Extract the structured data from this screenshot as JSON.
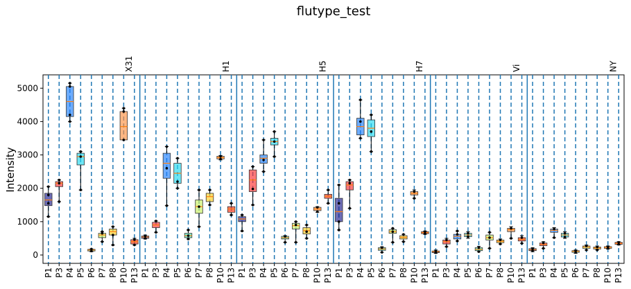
{
  "chart_data": {
    "type": "box",
    "title": "flutype_test",
    "ylabel": "Intensity",
    "xlabel": "",
    "ylim": [
      -250,
      5400
    ],
    "yticks": [
      0,
      1000,
      2000,
      3000,
      4000,
      5000
    ],
    "grid": false,
    "groups": [
      "X31",
      "H1",
      "H5",
      "H7",
      "Vi",
      "NY"
    ],
    "categories": [
      "P1",
      "P3",
      "P4",
      "P5",
      "P6",
      "P7",
      "P8",
      "P10",
      "P13"
    ],
    "group_colors": [
      "#1f1f8f",
      "#ff3030",
      "#1f7fff",
      "#20d8f0",
      "#40e0b0",
      "#c8f060",
      "#ffd020",
      "#ff9040",
      "#ff3010"
    ],
    "boxes": [
      {
        "group": "X31",
        "category": "P1",
        "min": 1150,
        "q1": 1480,
        "median": 1650,
        "q3": 1850,
        "max": 2050,
        "points": [
          1150,
          1550,
          1800,
          2050
        ]
      },
      {
        "group": "X31",
        "category": "P3",
        "min": 1600,
        "q1": 2050,
        "median": 2150,
        "q3": 2200,
        "max": 2250,
        "points": [
          1600,
          2150,
          2250
        ]
      },
      {
        "group": "X31",
        "category": "P4",
        "min": 4000,
        "q1": 4150,
        "median": 4600,
        "q3": 5050,
        "max": 5150,
        "points": [
          4000,
          4200,
          5050,
          5150
        ]
      },
      {
        "group": "X31",
        "category": "P5",
        "min": 1950,
        "q1": 2700,
        "median": 2950,
        "q3": 3050,
        "max": 3100,
        "points": [
          1950,
          2950,
          3100
        ]
      },
      {
        "group": "X31",
        "category": "P6",
        "min": 100,
        "q1": 120,
        "median": 150,
        "q3": 170,
        "max": 180,
        "points": [
          120,
          180
        ]
      },
      {
        "group": "X31",
        "category": "P7",
        "min": 400,
        "q1": 520,
        "median": 600,
        "q3": 650,
        "max": 700,
        "points": [
          400,
          650,
          700
        ]
      },
      {
        "group": "X31",
        "category": "P8",
        "min": 300,
        "q1": 600,
        "median": 700,
        "q3": 780,
        "max": 850,
        "points": [
          300,
          600,
          850
        ]
      },
      {
        "group": "X31",
        "category": "P10",
        "min": 3450,
        "q1": 3450,
        "median": 3850,
        "q3": 4300,
        "max": 4400,
        "points": [
          3450,
          4300,
          4400
        ]
      },
      {
        "group": "X31",
        "category": "P13",
        "min": 300,
        "q1": 330,
        "median": 400,
        "q3": 460,
        "max": 500,
        "points": [
          300,
          460
        ]
      },
      {
        "group": "H1",
        "category": "P1",
        "min": 480,
        "q1": 500,
        "median": 540,
        "q3": 570,
        "max": 600,
        "points": [
          500,
          570
        ]
      },
      {
        "group": "H1",
        "category": "P3",
        "min": 680,
        "q1": 820,
        "median": 900,
        "q3": 980,
        "max": 1020,
        "points": [
          680,
          1020
        ]
      },
      {
        "group": "H1",
        "category": "P4",
        "min": 1480,
        "q1": 2300,
        "median": 2750,
        "q3": 3050,
        "max": 3250,
        "points": [
          1480,
          2600,
          3250
        ]
      },
      {
        "group": "H1",
        "category": "P5",
        "min": 2000,
        "q1": 2150,
        "median": 2450,
        "q3": 2750,
        "max": 2900,
        "points": [
          2000,
          2200,
          2900
        ]
      },
      {
        "group": "H1",
        "category": "P6",
        "min": 480,
        "q1": 520,
        "median": 580,
        "q3": 650,
        "max": 750,
        "points": [
          480,
          580,
          750
        ]
      },
      {
        "group": "H1",
        "category": "P7",
        "min": 850,
        "q1": 1250,
        "median": 1450,
        "q3": 1650,
        "max": 1950,
        "points": [
          850,
          1450,
          1950
        ]
      },
      {
        "group": "H1",
        "category": "P8",
        "min": 1500,
        "q1": 1600,
        "median": 1750,
        "q3": 1850,
        "max": 1950,
        "points": [
          1500,
          1950
        ]
      },
      {
        "group": "H1",
        "category": "P10",
        "min": 2850,
        "q1": 2880,
        "median": 2920,
        "q3": 2960,
        "max": 2980,
        "points": [
          2880,
          2960
        ]
      },
      {
        "group": "H1",
        "category": "P13",
        "min": 1200,
        "q1": 1280,
        "median": 1380,
        "q3": 1450,
        "max": 1550,
        "points": [
          1200,
          1550
        ]
      },
      {
        "group": "H5",
        "category": "P1",
        "min": 720,
        "q1": 1000,
        "median": 1080,
        "q3": 1150,
        "max": 1200,
        "points": [
          720,
          1200
        ]
      },
      {
        "group": "H5",
        "category": "P3",
        "min": 1500,
        "q1": 1900,
        "median": 2250,
        "q3": 2550,
        "max": 2650,
        "points": [
          1500,
          1980,
          2650
        ]
      },
      {
        "group": "H5",
        "category": "P4",
        "min": 2500,
        "q1": 2750,
        "median": 2900,
        "q3": 3000,
        "max": 3450,
        "points": [
          2500,
          2850,
          3450
        ]
      },
      {
        "group": "H5",
        "category": "P5",
        "min": 2950,
        "q1": 3300,
        "median": 3400,
        "q3": 3500,
        "max": 3700,
        "points": [
          2950,
          3400,
          3700
        ]
      },
      {
        "group": "H5",
        "category": "P6",
        "min": 380,
        "q1": 480,
        "median": 520,
        "q3": 560,
        "max": 580,
        "points": [
          380,
          560
        ]
      },
      {
        "group": "H5",
        "category": "P7",
        "min": 380,
        "q1": 780,
        "median": 880,
        "q3": 950,
        "max": 1000,
        "points": [
          380,
          900,
          1000
        ]
      },
      {
        "group": "H5",
        "category": "P8",
        "min": 500,
        "q1": 630,
        "median": 730,
        "q3": 820,
        "max": 900,
        "points": [
          500,
          700,
          900
        ]
      },
      {
        "group": "H5",
        "category": "P10",
        "min": 1280,
        "q1": 1330,
        "median": 1380,
        "q3": 1430,
        "max": 1450,
        "points": [
          1300,
          1430
        ]
      },
      {
        "group": "H5",
        "category": "P13",
        "min": 1550,
        "q1": 1700,
        "median": 1760,
        "q3": 1820,
        "max": 1950,
        "points": [
          1550,
          1950
        ]
      },
      {
        "group": "H7",
        "category": "P1",
        "min": 750,
        "q1": 1000,
        "median": 1300,
        "q3": 1700,
        "max": 2100,
        "points": [
          750,
          1000,
          1550,
          2100
        ]
      },
      {
        "group": "H7",
        "category": "P3",
        "min": 1400,
        "q1": 1950,
        "median": 2100,
        "q3": 2200,
        "max": 2250,
        "points": [
          1400,
          2150,
          2250
        ]
      },
      {
        "group": "H7",
        "category": "P4",
        "min": 3500,
        "q1": 3600,
        "median": 3850,
        "q3": 4100,
        "max": 4650,
        "points": [
          3500,
          4000,
          4650
        ]
      },
      {
        "group": "H7",
        "category": "P5",
        "min": 3100,
        "q1": 3550,
        "median": 3800,
        "q3": 4050,
        "max": 4200,
        "points": [
          3100,
          3700,
          4200
        ]
      },
      {
        "group": "H7",
        "category": "P6",
        "min": 80,
        "q1": 140,
        "median": 180,
        "q3": 220,
        "max": 250,
        "points": [
          80,
          220
        ]
      },
      {
        "group": "H7",
        "category": "P7",
        "min": 380,
        "q1": 650,
        "median": 700,
        "q3": 760,
        "max": 800,
        "points": [
          380,
          700,
          800
        ]
      },
      {
        "group": "H7",
        "category": "P8",
        "min": 400,
        "q1": 480,
        "median": 530,
        "q3": 580,
        "max": 620,
        "points": [
          400,
          620
        ]
      },
      {
        "group": "H7",
        "category": "P10",
        "min": 1700,
        "q1": 1800,
        "median": 1850,
        "q3": 1900,
        "max": 1950,
        "points": [
          1700,
          1900
        ]
      },
      {
        "group": "H7",
        "category": "P13",
        "min": 620,
        "q1": 640,
        "median": 670,
        "q3": 700,
        "max": 720,
        "points": [
          640,
          700
        ]
      },
      {
        "group": "Vi",
        "category": "P1",
        "min": 50,
        "q1": 70,
        "median": 100,
        "q3": 120,
        "max": 150,
        "points": [
          70,
          120
        ]
      },
      {
        "group": "Vi",
        "category": "P3",
        "min": 250,
        "q1": 330,
        "median": 400,
        "q3": 450,
        "max": 500,
        "points": [
          250,
          450
        ]
      },
      {
        "group": "Vi",
        "category": "P4",
        "min": 420,
        "q1": 480,
        "median": 560,
        "q3": 620,
        "max": 720,
        "points": [
          420,
          620,
          720
        ]
      },
      {
        "group": "Vi",
        "category": "P5",
        "min": 500,
        "q1": 550,
        "median": 600,
        "q3": 650,
        "max": 700,
        "points": [
          550,
          650
        ]
      },
      {
        "group": "Vi",
        "category": "P6",
        "min": 100,
        "q1": 130,
        "median": 170,
        "q3": 220,
        "max": 260,
        "points": [
          100,
          220
        ]
      },
      {
        "group": "Vi",
        "category": "P7",
        "min": 200,
        "q1": 450,
        "median": 520,
        "q3": 600,
        "max": 680,
        "points": [
          200,
          520,
          680
        ]
      },
      {
        "group": "Vi",
        "category": "P8",
        "min": 330,
        "q1": 370,
        "median": 410,
        "q3": 450,
        "max": 480,
        "points": [
          330,
          450
        ]
      },
      {
        "group": "Vi",
        "category": "P10",
        "min": 500,
        "q1": 700,
        "median": 760,
        "q3": 800,
        "max": 850,
        "points": [
          500,
          800
        ]
      },
      {
        "group": "Vi",
        "category": "P13",
        "min": 350,
        "q1": 420,
        "median": 470,
        "q3": 520,
        "max": 580,
        "points": [
          350,
          520
        ]
      },
      {
        "group": "NY",
        "category": "P1",
        "min": 100,
        "q1": 130,
        "median": 160,
        "q3": 190,
        "max": 220,
        "points": [
          130,
          190
        ]
      },
      {
        "group": "NY",
        "category": "P3",
        "min": 200,
        "q1": 280,
        "median": 320,
        "q3": 360,
        "max": 400,
        "points": [
          200,
          360
        ]
      },
      {
        "group": "NY",
        "category": "P4",
        "min": 520,
        "q1": 680,
        "median": 740,
        "q3": 780,
        "max": 820,
        "points": [
          520,
          780
        ]
      },
      {
        "group": "NY",
        "category": "P5",
        "min": 500,
        "q1": 540,
        "median": 600,
        "q3": 650,
        "max": 700,
        "points": [
          540,
          650
        ]
      },
      {
        "group": "NY",
        "category": "P6",
        "min": 50,
        "q1": 80,
        "median": 110,
        "q3": 130,
        "max": 150,
        "points": [
          80,
          130
        ]
      },
      {
        "group": "NY",
        "category": "P7",
        "min": 150,
        "q1": 200,
        "median": 240,
        "q3": 270,
        "max": 300,
        "points": [
          150,
          270
        ]
      },
      {
        "group": "NY",
        "category": "P8",
        "min": 150,
        "q1": 180,
        "median": 210,
        "q3": 240,
        "max": 270,
        "points": [
          150,
          240
        ]
      },
      {
        "group": "NY",
        "category": "P10",
        "min": 180,
        "q1": 200,
        "median": 230,
        "q3": 250,
        "max": 270,
        "points": [
          200,
          250
        ]
      },
      {
        "group": "NY",
        "category": "P13",
        "min": 300,
        "q1": 320,
        "median": 350,
        "q3": 380,
        "max": 400,
        "points": [
          320,
          380
        ]
      }
    ]
  }
}
